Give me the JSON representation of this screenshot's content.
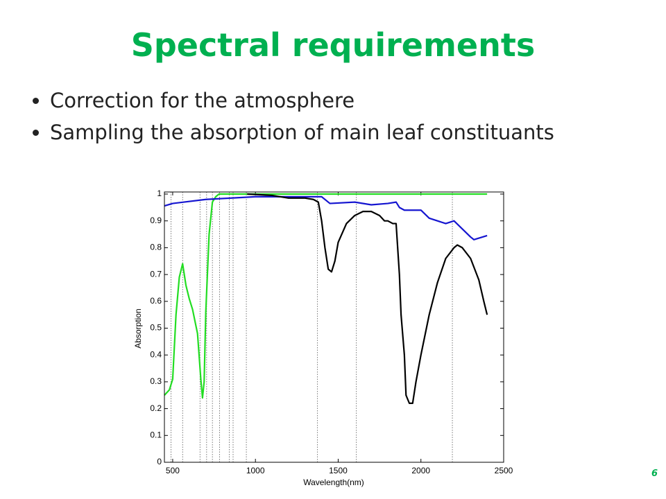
{
  "slide": {
    "title": "Spectral requirements",
    "bullets": [
      "Correction for the atmosphere",
      "Sampling the absorption of main leaf constituants"
    ],
    "page_number": "6"
  },
  "chart_data": {
    "type": "line",
    "y_label": "Absorption",
    "x_label": "Wavelength(nm)",
    "xlim": [
      450,
      2500
    ],
    "xticks": [
      500,
      1000,
      1500,
      2000,
      2500
    ],
    "ylim": [
      0,
      1
    ],
    "yticks": [
      0,
      0.1,
      0.2,
      0.3,
      0.4,
      0.5,
      0.6,
      0.7,
      0.8,
      0.9,
      1
    ],
    "band_lines": [
      490,
      560,
      665,
      705,
      740,
      783,
      842,
      865,
      945,
      1375,
      1610,
      2190
    ],
    "series": [
      {
        "color": "#22dd22",
        "x": [
          450,
          480,
          500,
          520,
          540,
          560,
          580,
          600,
          620,
          650,
          670,
          680,
          690,
          700,
          720,
          740,
          760,
          780,
          2400
        ],
        "values": [
          0.25,
          0.27,
          0.31,
          0.55,
          0.69,
          0.74,
          0.66,
          0.61,
          0.57,
          0.48,
          0.31,
          0.24,
          0.3,
          0.56,
          0.85,
          0.97,
          0.99,
          1.0,
          1.0
        ]
      },
      {
        "color": "#1515d0",
        "x": [
          450,
          500,
          700,
          1000,
          1400,
          1450,
          1600,
          1700,
          1800,
          1850,
          1870,
          1900,
          2000,
          2050,
          2150,
          2200,
          2250,
          2300,
          2320,
          2400
        ],
        "values": [
          0.956,
          0.965,
          0.98,
          0.99,
          0.99,
          0.965,
          0.97,
          0.96,
          0.965,
          0.97,
          0.95,
          0.94,
          0.94,
          0.91,
          0.89,
          0.9,
          0.87,
          0.84,
          0.83,
          0.845
        ]
      },
      {
        "color": "#000000",
        "x": [
          950,
          1100,
          1200,
          1300,
          1350,
          1380,
          1400,
          1420,
          1440,
          1460,
          1480,
          1500,
          1550,
          1600,
          1650,
          1700,
          1750,
          1780,
          1800,
          1830,
          1850,
          1870,
          1880,
          1900,
          1910,
          1930,
          1950,
          1970,
          2000,
          2050,
          2100,
          2150,
          2200,
          2220,
          2250,
          2300,
          2350,
          2380,
          2400
        ],
        "values": [
          1.0,
          0.995,
          0.985,
          0.985,
          0.98,
          0.97,
          0.9,
          0.8,
          0.72,
          0.71,
          0.75,
          0.82,
          0.89,
          0.92,
          0.935,
          0.935,
          0.92,
          0.9,
          0.9,
          0.89,
          0.89,
          0.7,
          0.55,
          0.4,
          0.25,
          0.22,
          0.22,
          0.3,
          0.4,
          0.55,
          0.67,
          0.76,
          0.8,
          0.81,
          0.8,
          0.76,
          0.68,
          0.6,
          0.55
        ]
      }
    ]
  }
}
